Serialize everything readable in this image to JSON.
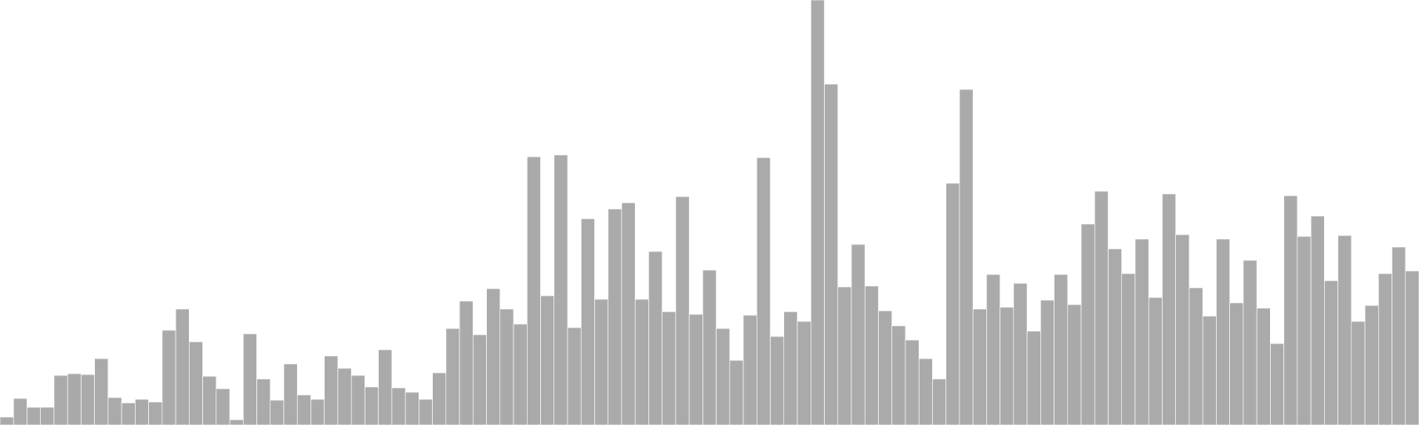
{
  "chart_data": {
    "type": "bar",
    "title": "",
    "xlabel": "",
    "ylabel": "",
    "ylim": [
      0,
      480
    ],
    "grid": false,
    "legend": "none",
    "bar_color": "#aaaaaa",
    "bar_edge_color": "#ffffff",
    "values": [
      9,
      30,
      20,
      20,
      56,
      58,
      57,
      75,
      31,
      25,
      29,
      26,
      107,
      131,
      94,
      55,
      41,
      6,
      103,
      52,
      28,
      69,
      34,
      29,
      78,
      64,
      56,
      43,
      85,
      42,
      37,
      29,
      59,
      109,
      140,
      102,
      154,
      131,
      114,
      303,
      146,
      305,
      110,
      233,
      142,
      244,
      251,
      142,
      196,
      128,
      258,
      125,
      175,
      109,
      73,
      124,
      302,
      100,
      128,
      117,
      480,
      385,
      156,
      204,
      157,
      129,
      112,
      96,
      75,
      52,
      273,
      379,
      131,
      170,
      133,
      160,
      106,
      141,
      170,
      136,
      227,
      264,
      199,
      171,
      210,
      144,
      261,
      215,
      155,
      123,
      210,
      138,
      186,
      132,
      92,
      259,
      213,
      236,
      163,
      214,
      117,
      135,
      171,
      201,
      174
    ]
  }
}
